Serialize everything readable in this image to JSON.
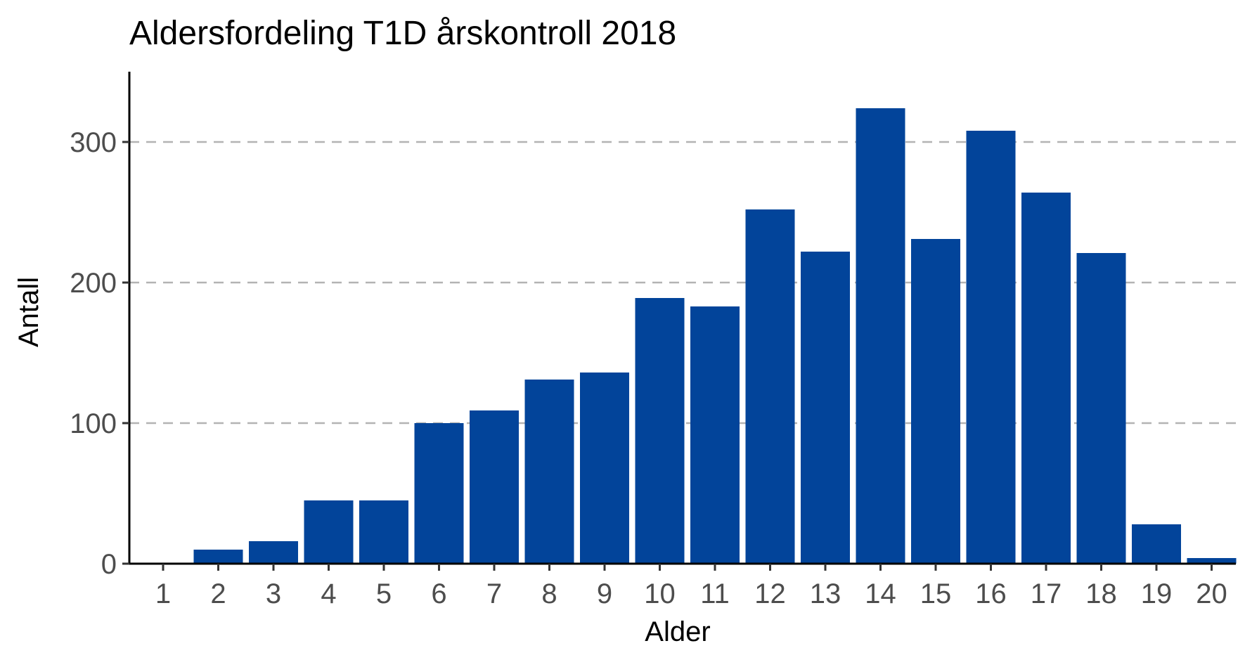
{
  "chart_data": {
    "type": "bar",
    "title": "Aldersfordeling T1D årskontroll 2018",
    "xlabel": "Alder",
    "ylabel": "Antall",
    "categories": [
      "1",
      "2",
      "3",
      "4",
      "5",
      "6",
      "7",
      "8",
      "9",
      "10",
      "11",
      "12",
      "13",
      "14",
      "15",
      "16",
      "17",
      "18",
      "19",
      "20"
    ],
    "values": [
      0,
      10,
      16,
      45,
      45,
      100,
      109,
      131,
      136,
      189,
      183,
      252,
      222,
      324,
      231,
      308,
      264,
      221,
      28,
      4
    ],
    "ylim": [
      0,
      350
    ],
    "yticks": [
      0,
      100,
      200,
      300
    ],
    "ytick_labels": [
      "0",
      "100",
      "200",
      "300"
    ],
    "grid": "horizontal dashed major lines",
    "legend": "none",
    "bar_color": "#02449a",
    "grid_color": "#b3b3b3"
  }
}
